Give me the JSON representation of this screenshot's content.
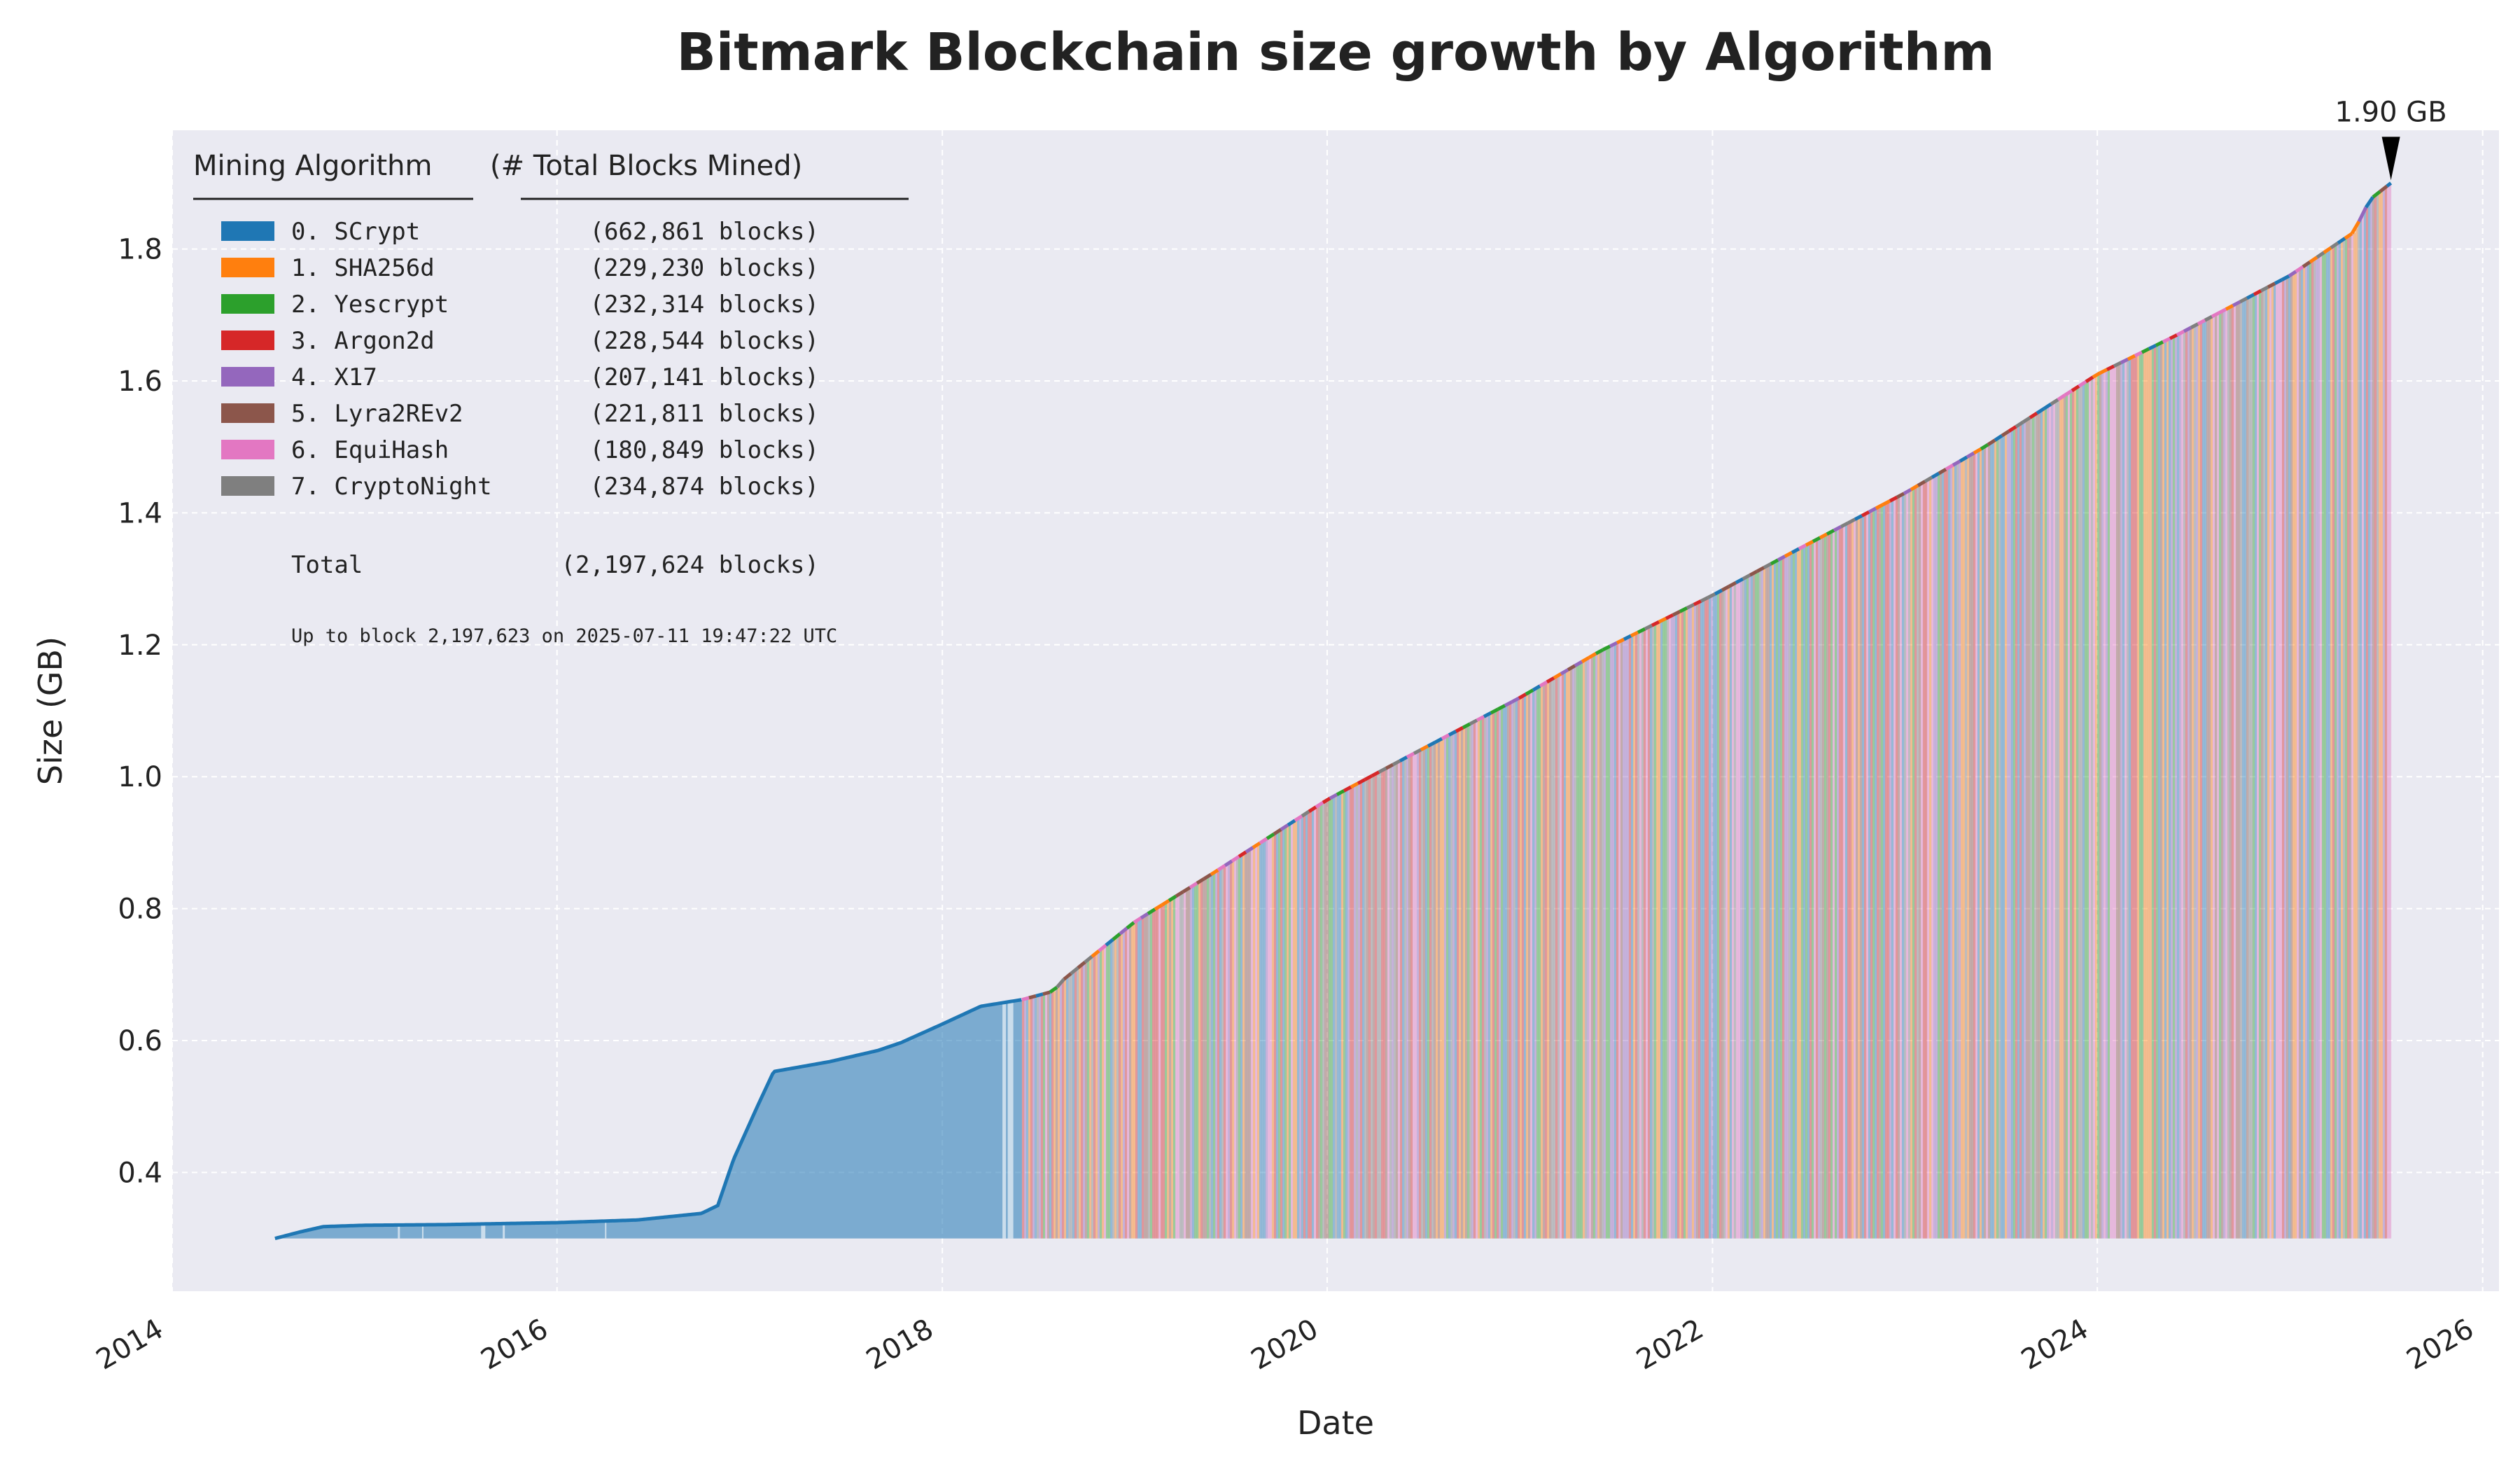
{
  "chart_data": {
    "type": "area",
    "title": "Bitmark Blockchain size growth by Algorithm",
    "xlabel": "Date",
    "ylabel": "Size (GB)",
    "xlim": [
      "2014-01-01",
      "2026-02-01"
    ],
    "ylim": [
      0.22,
      1.98
    ],
    "x_ticks": [
      "2014",
      "2016",
      "2018",
      "2020",
      "2022",
      "2024",
      "2026"
    ],
    "y_ticks": [
      "0.4",
      "0.6",
      "0.8",
      "1.0",
      "1.2",
      "1.4",
      "1.6",
      "1.8"
    ],
    "grid": true,
    "fill_base": 0.3,
    "legend": {
      "placement": "top-left",
      "header_algorithm": "Mining Algorithm",
      "header_blocks": "(# Total Blocks Mined)",
      "items": [
        {
          "name": "0. SCrypt",
          "blocks": "(662,861 blocks)",
          "color": "#1f77b4"
        },
        {
          "name": "1. SHA256d",
          "blocks": "(229,230 blocks)",
          "color": "#ff7f0e"
        },
        {
          "name": "2. Yescrypt",
          "blocks": "(232,314 blocks)",
          "color": "#2ca02c"
        },
        {
          "name": "3. Argon2d",
          "blocks": "(228,544 blocks)",
          "color": "#d62728"
        },
        {
          "name": "4. X17",
          "blocks": "(207,141 blocks)",
          "color": "#9467bd"
        },
        {
          "name": "5. Lyra2REv2",
          "blocks": "(221,811 blocks)",
          "color": "#8c564b"
        },
        {
          "name": "6. EquiHash",
          "blocks": "(180,849 blocks)",
          "color": "#e377c2"
        },
        {
          "name": "7. CryptoNight",
          "blocks": "(234,874 blocks)",
          "color": "#7f7f7f"
        }
      ],
      "total_label": "Total",
      "total_blocks": "(2,197,624 blocks)",
      "note": "Up to block 2,197,623 on 2025-07-11 19:47:22 UTC"
    },
    "annotation": {
      "text": "1.90 GB",
      "x": "2025-07-11",
      "y": 1.9
    },
    "scrypt_only_period": {
      "start": "2014-07-15",
      "end": "2018-06-01",
      "color": "#1f77b4"
    },
    "multi_algo_start": "2018-06-01",
    "series": [
      {
        "name": "Size (GB)",
        "points": [
          [
            "2014-07-15",
            0.3
          ],
          [
            "2014-09-01",
            0.31
          ],
          [
            "2014-10-15",
            0.318
          ],
          [
            "2015-01-01",
            0.32
          ],
          [
            "2015-06-01",
            0.321
          ],
          [
            "2016-01-01",
            0.324
          ],
          [
            "2016-06-01",
            0.328
          ],
          [
            "2016-08-01",
            0.333
          ],
          [
            "2016-10-01",
            0.338
          ],
          [
            "2016-11-01",
            0.35
          ],
          [
            "2016-12-01",
            0.42
          ],
          [
            "2017-01-15",
            0.5
          ],
          [
            "2017-02-15",
            0.553
          ],
          [
            "2017-06-01",
            0.568
          ],
          [
            "2017-09-01",
            0.585
          ],
          [
            "2017-10-15",
            0.597
          ],
          [
            "2018-01-01",
            0.625
          ],
          [
            "2018-03-15",
            0.652
          ],
          [
            "2018-06-01",
            0.662
          ],
          [
            "2018-08-01",
            0.675
          ],
          [
            "2018-08-15",
            0.69
          ],
          [
            "2019-01-01",
            0.78
          ],
          [
            "2019-06-01",
            0.855
          ],
          [
            "2020-01-01",
            0.965
          ],
          [
            "2020-06-01",
            1.03
          ],
          [
            "2021-01-01",
            1.12
          ],
          [
            "2021-06-01",
            1.19
          ],
          [
            "2022-01-01",
            1.275
          ],
          [
            "2022-06-01",
            1.34
          ],
          [
            "2023-01-01",
            1.43
          ],
          [
            "2023-06-01",
            1.5
          ],
          [
            "2024-01-01",
            1.61
          ],
          [
            "2024-06-01",
            1.67
          ],
          [
            "2025-01-01",
            1.76
          ],
          [
            "2025-05-01",
            1.825
          ],
          [
            "2025-06-01",
            1.875
          ],
          [
            "2025-07-11",
            1.9
          ]
        ]
      }
    ]
  }
}
